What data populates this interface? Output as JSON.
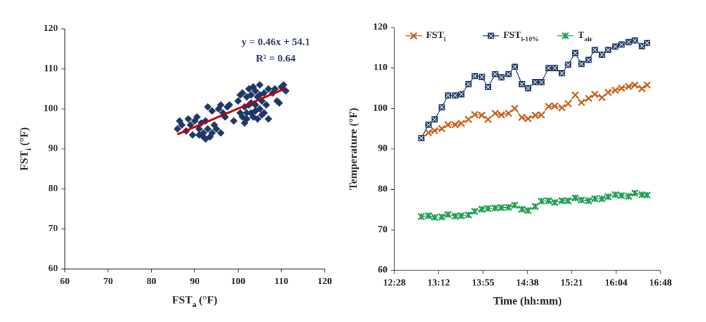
{
  "chart_data": [
    {
      "type": "scatter",
      "xlabel": {
        "text": "FST",
        "sub": "a",
        "after": " (°F)"
      },
      "ylabel": {
        "text": "FST",
        "sub": "i",
        "after": " (°F)"
      },
      "annotations": [
        "y = 0.46x + 54.1",
        "R² = 0.64"
      ],
      "xlim": [
        60,
        120
      ],
      "xticks": [
        60,
        70,
        80,
        90,
        100,
        110,
        120
      ],
      "ylim": [
        60,
        120
      ],
      "yticks": [
        60,
        70,
        80,
        90,
        100,
        110,
        120
      ],
      "color": "#1f3767",
      "x": [
        86,
        86.5,
        87,
        88,
        88.5,
        89,
        89.5,
        90,
        90.5,
        91,
        91,
        91.5,
        92,
        92.5,
        92.5,
        93,
        93,
        93.5,
        94,
        94,
        94.5,
        95,
        95.5,
        96,
        96.5,
        97,
        97.5,
        98,
        99,
        100,
        100.5,
        101,
        101,
        101.5,
        102,
        102,
        102.5,
        102.5,
        103,
        103,
        103.5,
        103.5,
        104,
        104,
        104.5,
        104.5,
        105,
        105,
        105.5,
        105.5,
        106,
        106,
        106.5,
        107,
        107,
        108,
        108.5,
        109,
        109.5,
        110,
        110.5,
        111,
        100.5,
        101.5,
        103,
        104,
        102,
        105,
        96,
        92
      ],
      "y": [
        95,
        97,
        96,
        94.5,
        97.5,
        96,
        93.5,
        97,
        98,
        95,
        93.5,
        96.5,
        94,
        92.5,
        97,
        95,
        100.5,
        93,
        94,
        99.5,
        96,
        95,
        100,
        101,
        99,
        98,
        100.5,
        101,
        97,
        102,
        99,
        104,
        98,
        100.5,
        103,
        97.5,
        105,
        101,
        99,
        103.5,
        98,
        105.5,
        101,
        99.5,
        103,
        97.5,
        106,
        100,
        102,
        98.5,
        104,
        99,
        101,
        105,
        97.5,
        104,
        105,
        102,
        101.5,
        105.5,
        106,
        104.5,
        103.5,
        96.5,
        101.5,
        104.5,
        99,
        103.5,
        94,
        93
      ],
      "trendline": {
        "x": [
          86,
          111
        ],
        "y": [
          93.66,
          105.16
        ],
        "color": "#c00000"
      }
    },
    {
      "type": "line",
      "xlabel": "Time (hh:mm)",
      "ylabel": "Temperature (°F)",
      "xlim": [
        748.8,
        1008
      ],
      "xticks": [
        {
          "value": 748.8,
          "label": "12:28"
        },
        {
          "value": 792,
          "label": "13:12"
        },
        {
          "value": 835.2,
          "label": "13:55"
        },
        {
          "value": 878.4,
          "label": "14:38"
        },
        {
          "value": 921.6,
          "label": "15:21"
        },
        {
          "value": 964.8,
          "label": "16:04"
        },
        {
          "value": 1008,
          "label": "16:48"
        }
      ],
      "ylim": [
        60,
        120
      ],
      "yticks": [
        60,
        70,
        80,
        90,
        100,
        110,
        120
      ],
      "x": [
        775,
        782,
        788,
        795,
        801,
        808,
        814,
        821,
        827,
        834,
        840,
        847,
        853,
        860,
        866,
        873,
        879,
        886,
        892,
        899,
        905,
        912,
        918,
        925,
        931,
        938,
        944,
        951,
        957,
        964,
        970,
        977,
        983,
        990,
        995
      ],
      "series": [
        {
          "name": {
            "text": "FST",
            "sub": "i"
          },
          "color": "#c55a11",
          "marker": "x",
          "values": [
            92.7,
            94,
            94.5,
            95,
            96,
            96,
            96.3,
            97.3,
            98.5,
            98.3,
            97.3,
            98.8,
            98.4,
            98.8,
            100,
            97.8,
            97.5,
            98.3,
            98.4,
            100.5,
            100.6,
            100.2,
            101.2,
            103.3,
            101.5,
            102.5,
            103.5,
            102.7,
            104,
            104.5,
            105,
            105.4,
            105.8,
            104.9,
            105.8
          ]
        },
        {
          "name": {
            "text": "FST",
            "sub": "i-10%"
          },
          "color": "#1f3767",
          "marker": "square",
          "values": [
            92.7,
            96,
            97.3,
            100.3,
            103.2,
            103.2,
            103.5,
            106,
            108,
            107.8,
            105.3,
            108.5,
            107.7,
            108.5,
            110.3,
            106,
            105,
            106.5,
            106.5,
            110,
            110,
            108.7,
            110.8,
            113.7,
            111,
            112,
            114.5,
            113.3,
            114.5,
            115.3,
            115.8,
            116.4,
            116.8,
            115.4,
            116.2
          ]
        },
        {
          "name": {
            "text": "T",
            "sub": "air"
          },
          "color": "#1e9e50",
          "marker": "asterisk",
          "values": [
            73.3,
            73.5,
            73.1,
            73.2,
            73.8,
            73.4,
            73.5,
            73.7,
            74.6,
            75.1,
            75.3,
            75.4,
            75.5,
            75.6,
            76.1,
            75.1,
            74.8,
            75.8,
            77.1,
            77.2,
            76.8,
            77.2,
            77.2,
            77.9,
            77.4,
            77.2,
            77.7,
            77.7,
            78.2,
            78.7,
            78.5,
            78.3,
            79.1,
            78.7,
            78.6
          ]
        }
      ]
    }
  ]
}
